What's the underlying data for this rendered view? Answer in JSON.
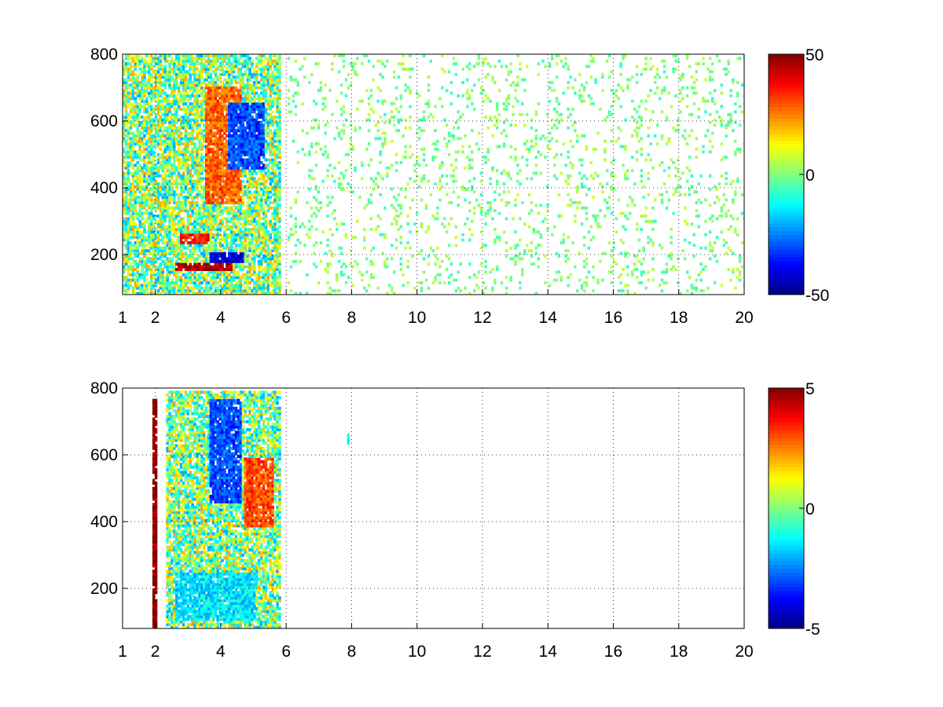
{
  "chart_data": [
    {
      "type": "heatmap",
      "title": "",
      "xlabel": "",
      "ylabel": "",
      "xlim": [
        1,
        20
      ],
      "ylim": [
        80,
        800
      ],
      "grid": true,
      "colormap": "jet",
      "x_ticks": [
        1,
        2,
        4,
        6,
        8,
        10,
        12,
        14,
        16,
        18,
        20
      ],
      "x_tick_labels": [
        "1",
        "2",
        "4",
        "6",
        "8",
        "10",
        "12",
        "14",
        "16",
        "18",
        "20"
      ],
      "y_ticks": [
        200,
        400,
        600,
        800
      ],
      "y_tick_labels": [
        "200",
        "400",
        "600",
        "800"
      ],
      "colorbar": {
        "range": [
          -50,
          50
        ],
        "tick_labels": [
          "50",
          "0",
          "-50"
        ]
      },
      "features": [
        {
          "region": "dense",
          "x": [
            1,
            5.8
          ],
          "y": [
            80,
            800
          ],
          "value_range": [
            -50,
            50
          ]
        },
        {
          "region": "red-band",
          "x": [
            2.6,
            4.3
          ],
          "y": [
            150,
            175
          ],
          "value": 45
        },
        {
          "region": "red-band",
          "x": [
            2.7,
            3.6
          ],
          "y": [
            230,
            260
          ],
          "value": 35
        },
        {
          "region": "orange-core",
          "x": [
            3.5,
            4.6
          ],
          "y": [
            350,
            700
          ],
          "value": 28
        },
        {
          "region": "blue-core",
          "x": [
            4.2,
            5.3
          ],
          "y": [
            450,
            650
          ],
          "value": -30
        },
        {
          "region": "blue-band",
          "x": [
            3.6,
            4.7
          ],
          "y": [
            170,
            200
          ],
          "value": -40
        },
        {
          "region": "sparse",
          "x": [
            6,
            20
          ],
          "y": [
            80,
            800
          ],
          "value_range": [
            -10,
            10
          ]
        }
      ]
    },
    {
      "type": "heatmap",
      "title": "",
      "xlabel": "",
      "ylabel": "",
      "xlim": [
        1,
        20
      ],
      "ylim": [
        80,
        800
      ],
      "grid": true,
      "colormap": "jet",
      "x_ticks": [
        1,
        2,
        4,
        6,
        8,
        10,
        12,
        14,
        16,
        18,
        20
      ],
      "x_tick_labels": [
        "1",
        "2",
        "4",
        "6",
        "8",
        "10",
        "12",
        "14",
        "16",
        "18",
        "20"
      ],
      "y_ticks": [
        200,
        400,
        600,
        800
      ],
      "y_tick_labels": [
        "200",
        "400",
        "600",
        "800"
      ],
      "colorbar": {
        "range": [
          -5,
          5
        ],
        "tick_labels": [
          "5",
          "0",
          "-5"
        ]
      },
      "features": [
        {
          "region": "dense",
          "x": [
            2.3,
            5.8
          ],
          "y": [
            80,
            790
          ],
          "value_range": [
            -5,
            5
          ]
        },
        {
          "region": "red-column",
          "x": [
            1.9,
            2.0
          ],
          "y": [
            80,
            760
          ],
          "value": 5
        },
        {
          "region": "orange-patch",
          "x": [
            4.7,
            5.6
          ],
          "y": [
            380,
            590
          ],
          "value": 3
        },
        {
          "region": "cyan-band",
          "x": [
            2.6,
            5.0
          ],
          "y": [
            100,
            240
          ],
          "value": -1.5
        },
        {
          "region": "blue-patch",
          "x": [
            3.6,
            4.6
          ],
          "y": [
            450,
            760
          ],
          "value": -3
        },
        {
          "region": "isolated",
          "x": [
            7.8,
            7.9
          ],
          "y": [
            630,
            660
          ],
          "value": -1
        }
      ]
    }
  ]
}
